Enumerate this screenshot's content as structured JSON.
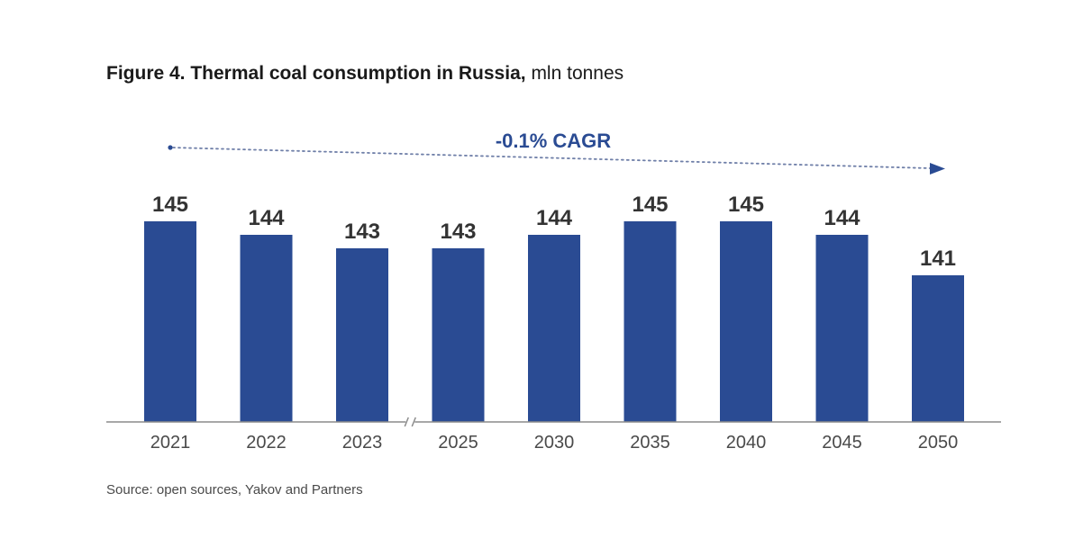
{
  "title": {
    "bold": "Figure 4. Thermal coal consumption in Russia,",
    "unit": "mln tonnes"
  },
  "source": "Source: open sources, Yakov and Partners",
  "colors": {
    "bar": "#2a4b93",
    "cagr": "#2a4b93",
    "axis": "#8c8c8c",
    "arrow": "#6f7fa8"
  },
  "chart_data": {
    "type": "bar",
    "title": "Figure 4. Thermal coal consumption in Russia, mln tonnes",
    "categories": [
      "2021",
      "2022",
      "2023",
      "2025",
      "2030",
      "2035",
      "2040",
      "2045",
      "2050"
    ],
    "values": [
      145,
      144,
      143,
      143,
      144,
      145,
      145,
      144,
      141
    ],
    "value_labels": [
      "145",
      "144",
      "143",
      "143",
      "144",
      "145",
      "145",
      "144",
      "141"
    ],
    "axis_break_after": "2023",
    "annotation": "-0.1% CAGR",
    "xlabel": "",
    "ylabel": "mln tonnes",
    "grid": false
  }
}
